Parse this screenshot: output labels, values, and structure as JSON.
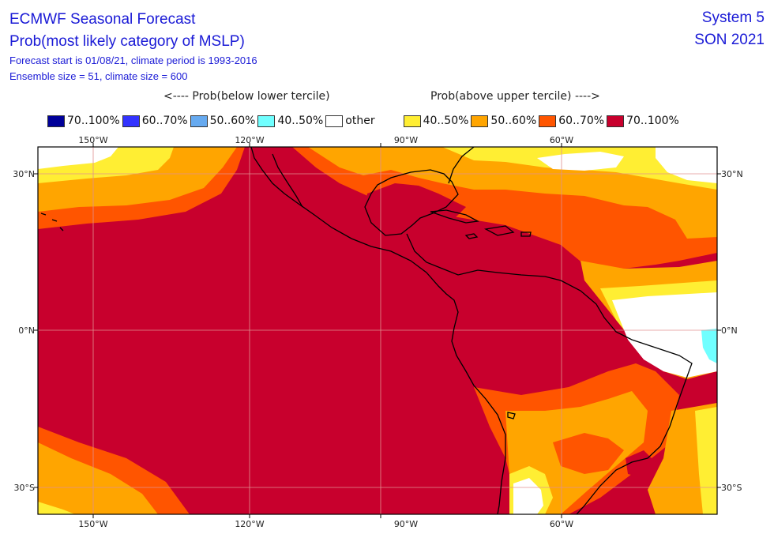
{
  "header": {
    "title1": "ECMWF Seasonal Forecast",
    "title2": "Prob(most likely category of MSLP)",
    "line3": "Forecast start is 01/08/21, climate period is 1993-2016",
    "line4": "Ensemble size = 51, climate size = 600",
    "system": "System 5",
    "period": "SON 2021"
  },
  "legend": {
    "below_label": "<---- Prob(below lower tercile)",
    "above_label": "Prob(above upper tercile) ---->",
    "items": [
      {
        "label": "70..100%",
        "color": "#000099"
      },
      {
        "label": "60..70%",
        "color": "#3333ff"
      },
      {
        "label": "50..60%",
        "color": "#66aaf0"
      },
      {
        "label": "40..50%",
        "color": "#70ffff"
      },
      {
        "label": "other",
        "color": "#ffffff"
      },
      {
        "label": "40..50%",
        "color": "#ffee33"
      },
      {
        "label": "50..60%",
        "color": "#ffa500"
      },
      {
        "label": "60..70%",
        "color": "#ff5500"
      },
      {
        "label": "70..100%",
        "color": "#c8002d"
      }
    ]
  },
  "axes": {
    "lon_labels": [
      "150°W",
      "120°W",
      "90°W",
      "60°W"
    ],
    "lat_labels": [
      "30°N",
      "0°N",
      "30°S"
    ]
  },
  "colors": {
    "cat70_100": "#c8002d",
    "cat60_70": "#ff5500",
    "cat50_60": "#ffa500",
    "cat40_50": "#ffee33",
    "other": "#ffffff",
    "blue40_50": "#70ffff",
    "coast": "#000000"
  }
}
